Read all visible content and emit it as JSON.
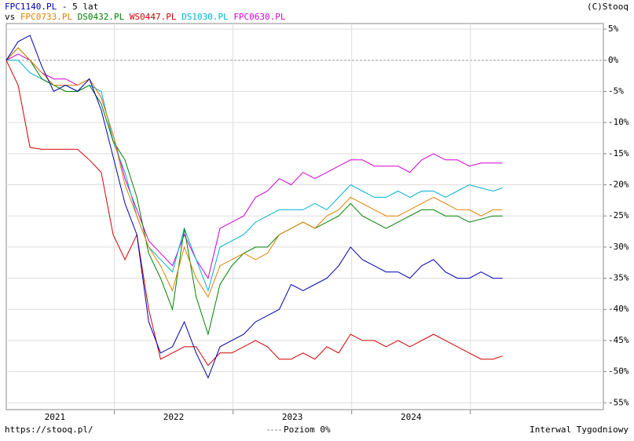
{
  "chart_data": {
    "type": "line",
    "period": "- 5 lat",
    "compare_label": "vs",
    "copyright": "(C)Stooq",
    "source": "https://stooq.pl/",
    "zero_line_label": "Poziom 0%",
    "interval_label": "Interwal Tygodniowy",
    "x": [
      2021.09,
      2021.19,
      2021.29,
      2021.39,
      2021.49,
      2021.59,
      2021.69,
      2021.79,
      2021.89,
      2021.99,
      2022.09,
      2022.19,
      2022.29,
      2022.39,
      2022.49,
      2022.59,
      2022.69,
      2022.79,
      2022.89,
      2022.99,
      2023.09,
      2023.19,
      2023.29,
      2023.39,
      2023.49,
      2023.59,
      2023.69,
      2023.79,
      2023.89,
      2023.99,
      2024.09,
      2024.19,
      2024.29,
      2024.39,
      2024.49,
      2024.59,
      2024.69,
      2024.79,
      2024.89,
      2024.99,
      2025.09,
      2025.19,
      2025.27
    ],
    "xlim": [
      2021.09,
      2026.12
    ],
    "xticks": [
      2022,
      2023,
      2024,
      2025
    ],
    "xtick_labels": [
      {
        "value": 2021.5,
        "label": "2021"
      },
      {
        "value": 2022.5,
        "label": "2022"
      },
      {
        "value": 2023.5,
        "label": "2023"
      },
      {
        "value": 2024.5,
        "label": "2024"
      }
    ],
    "ylim": [
      -56.1,
      5.9
    ],
    "yticks": [
      {
        "value": 5,
        "label": "5%"
      },
      {
        "value": 0,
        "label": "0%"
      },
      {
        "value": -5,
        "label": "-5%"
      },
      {
        "value": -10,
        "label": "-10%"
      },
      {
        "value": -15,
        "label": "-15%"
      },
      {
        "value": -20,
        "label": "-20%"
      },
      {
        "value": -25,
        "label": "-25%"
      },
      {
        "value": -30,
        "label": "-30%"
      },
      {
        "value": -35,
        "label": "-35%"
      },
      {
        "value": -40,
        "label": "-40%"
      },
      {
        "value": -45,
        "label": "-45%"
      },
      {
        "value": -50,
        "label": "-50%"
      },
      {
        "value": -55,
        "label": "-55%"
      }
    ],
    "grid": true,
    "series": [
      {
        "name": "FPC1140.PL",
        "color": "#0000b0",
        "values": [
          0,
          3,
          4,
          -1,
          -5,
          -4,
          -5,
          -3,
          -8,
          -15.5,
          -23,
          -28,
          -42,
          -47,
          -46,
          -42,
          -47,
          -51,
          -46,
          -45,
          -44,
          -42,
          -41,
          -40,
          -36,
          -37,
          -36,
          -35,
          -33,
          -30,
          -32,
          -33,
          -34,
          -34,
          -35,
          -33,
          -32,
          -34,
          -35,
          -35,
          -34,
          -35,
          -35
        ]
      },
      {
        "name": "FPC0733.PL",
        "color": "#e08000",
        "values": [
          0,
          2,
          0,
          -2,
          -4,
          -4,
          -4,
          -3,
          -6,
          -12,
          -20,
          -25,
          -30,
          -33,
          -37,
          -30,
          -35,
          -38,
          -33,
          -32,
          -31,
          -32,
          -31,
          -28,
          -27,
          -26,
          -27,
          -25,
          -24,
          -22,
          -23,
          -24,
          -25,
          -25,
          -24,
          -23,
          -22,
          -23,
          -24,
          -24,
          -25,
          -24,
          -24
        ]
      },
      {
        "name": "DS0432.PL",
        "color": "#008000",
        "values": [
          0,
          2,
          0,
          -3,
          -4,
          -5,
          -5,
          -4,
          -7,
          -13,
          -16,
          -22,
          -31,
          -35,
          -40,
          -27,
          -38,
          -44,
          -36,
          -33,
          -31,
          -30,
          -30,
          -28,
          -27,
          -26,
          -27,
          -26,
          -25,
          -23,
          -25,
          -26,
          -27,
          -26,
          -25,
          -24,
          -24,
          -25,
          -25,
          -26,
          -25.5,
          -25,
          -25
        ]
      },
      {
        "name": "WS0447.PL",
        "color": "#d00000",
        "values": [
          0,
          -4,
          -14,
          -14.3,
          -14.3,
          -14.3,
          -14.3,
          -16,
          -18,
          -28,
          -32,
          -28,
          -40,
          -48,
          -47,
          -46,
          -46,
          -49,
          -47,
          -47,
          -46,
          -45,
          -46,
          -48,
          -48,
          -47,
          -48,
          -46,
          -47,
          -44,
          -45,
          -45,
          -46,
          -45,
          -46,
          -45,
          -44,
          -45,
          -46,
          -47,
          -48,
          -48,
          -47.5
        ]
      },
      {
        "name": "DS1030.PL",
        "color": "#00b0d0",
        "values": [
          0,
          0,
          -2,
          -3,
          -4,
          -4,
          -5,
          -4,
          -5,
          -13,
          -18,
          -25,
          -30,
          -32,
          -34,
          -27,
          -32,
          -37,
          -30,
          -29,
          -28,
          -26,
          -25,
          -24,
          -24,
          -24,
          -23,
          -24,
          -22,
          -20,
          -21,
          -22,
          -22,
          -21,
          -22,
          -21,
          -21,
          -22,
          -21,
          -20,
          -20.5,
          -21,
          -20.5
        ]
      },
      {
        "name": "FPC0630.PL",
        "color": "#d000d0",
        "values": [
          0,
          1,
          0,
          -2,
          -3,
          -3,
          -4,
          -3,
          -6,
          -12,
          -19,
          -24,
          -29,
          -31,
          -33,
          -28,
          -32,
          -35,
          -27,
          -26,
          -25,
          -22,
          -21,
          -19,
          -20,
          -18,
          -19,
          -18,
          -17,
          -16,
          -16,
          -17,
          -17,
          -17,
          -18,
          -16,
          -15,
          -16,
          -16,
          -17,
          -16.5,
          -16.5,
          -16.5
        ]
      }
    ]
  }
}
